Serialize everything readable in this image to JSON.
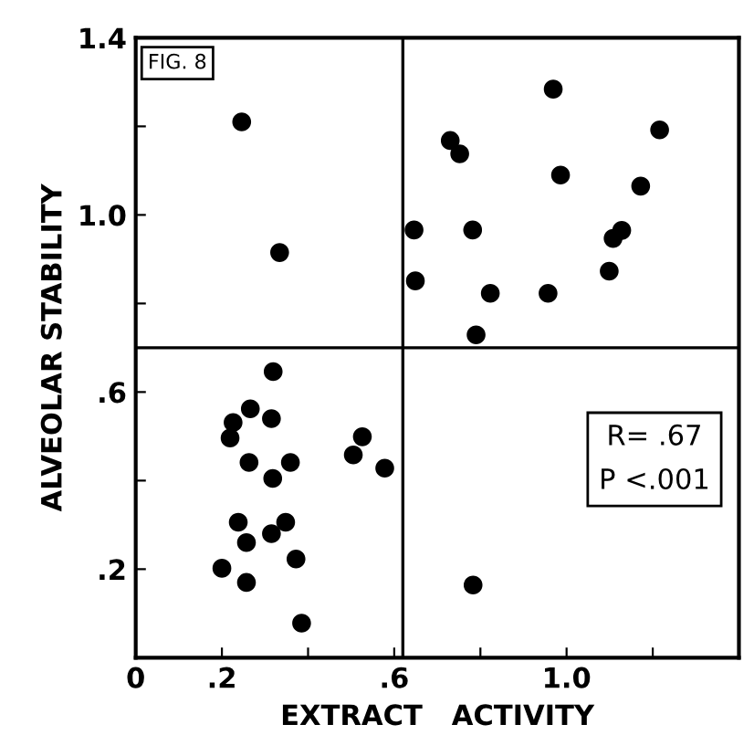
{
  "chart_data": {
    "type": "scatter",
    "xlabel": "EXTRACT   ACTIVITY",
    "ylabel": "ALVEOLAR STABILITY",
    "annotations": [
      "FIG. 8",
      "R= .67\nP <.001"
    ],
    "x": [
      0.246,
      0.334,
      0.969,
      0.73,
      0.752,
      1.216,
      0.986,
      1.172,
      0.646,
      0.782,
      1.128,
      1.108,
      0.649,
      1.099,
      0.823,
      0.957,
      0.79,
      0.319,
      0.266,
      0.315,
      0.226,
      0.219,
      0.526,
      0.505,
      0.578,
      0.263,
      0.359,
      0.318,
      0.238,
      0.348,
      0.315,
      0.257,
      0.372,
      0.2,
      0.257,
      0.385,
      0.783
    ],
    "values": [
      1.21,
      0.915,
      1.284,
      1.168,
      1.138,
      1.192,
      1.09,
      1.065,
      0.966,
      0.966,
      0.965,
      0.947,
      0.851,
      0.873,
      0.823,
      0.823,
      0.729,
      0.646,
      0.562,
      0.54,
      0.531,
      0.496,
      0.499,
      0.458,
      0.428,
      0.441,
      0.441,
      0.405,
      0.306,
      0.306,
      0.28,
      0.26,
      0.223,
      0.202,
      0.17,
      0.078,
      0.164
    ],
    "color": "#000000",
    "marker": "circle",
    "xlim": [
      0,
      1.4
    ],
    "ylim": [
      0,
      1.4
    ],
    "xticks": [
      0,
      {
        "value": 0.2,
        "label": ".2"
      },
      {
        "value": 0.4,
        "label": null
      },
      {
        "value": 0.6,
        "label": ".6"
      },
      {
        "value": 0.8,
        "label": null
      },
      {
        "value": 1.0,
        "label": "1.0"
      },
      {
        "value": 1.2,
        "label": null
      }
    ],
    "yticks": [
      {
        "value": 0.2,
        "label": ".2"
      },
      {
        "value": 0.4,
        "label": null
      },
      {
        "value": 0.6,
        "label": ".6"
      },
      {
        "value": 0.8,
        "label": null
      },
      {
        "value": 1.0,
        "label": "1.0"
      },
      {
        "value": 1.2,
        "label": null
      },
      {
        "value": 1.4,
        "label": "1.4"
      }
    ],
    "ref_lines": [
      {
        "axis": "x",
        "value": 0.62
      },
      {
        "axis": "y",
        "value": 0.7
      }
    ],
    "grid": false
  }
}
